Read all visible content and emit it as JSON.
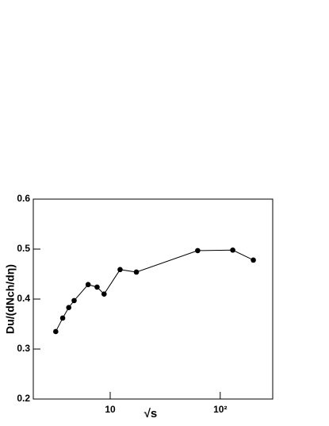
{
  "chart_data": {
    "type": "line",
    "x_label": "√s",
    "y_label": "Du/(dNch/dη)",
    "x": [
      3.2,
      3.7,
      4.2,
      4.7,
      6.3,
      7.6,
      8.8,
      12.3,
      17.3,
      62.4,
      130,
      200
    ],
    "series": [
      {
        "color": "#000000",
        "values": [
          0.335,
          0.362,
          0.383,
          0.397,
          0.429,
          0.424,
          0.41,
          0.459,
          0.454,
          0.497,
          0.498,
          0.478
        ]
      }
    ],
    "xlim": [
      2,
      300
    ],
    "ylim": [
      0.2,
      0.6
    ],
    "xlog": true,
    "xticks": [
      10,
      {
        "value": 100,
        "label": "10²"
      }
    ],
    "yticks": [
      0.2,
      0.3,
      0.4,
      0.5,
      0.6
    ]
  }
}
